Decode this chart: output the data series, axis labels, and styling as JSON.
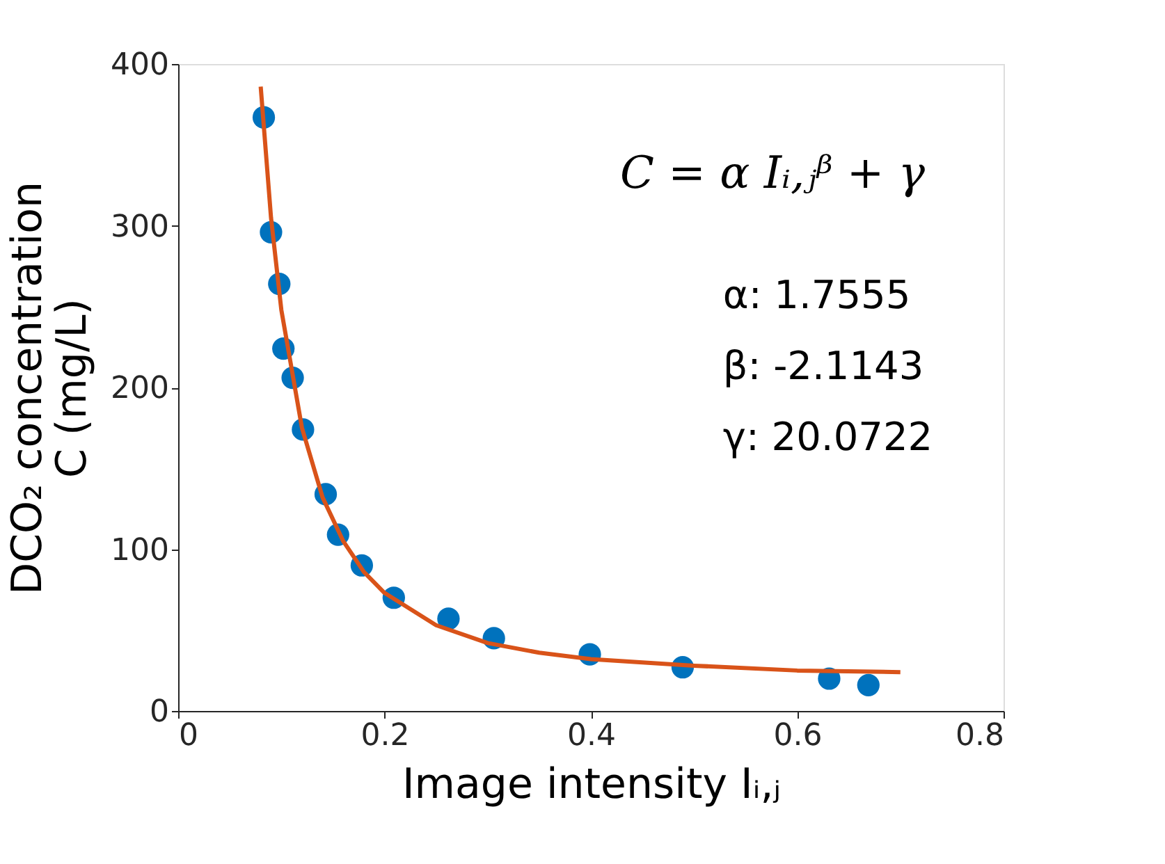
{
  "chart_data": {
    "type": "scatter",
    "xlabel": "Image intensity Iᵢ,ⱼ",
    "ylabel": "DCO₂ concentration\nC (mg/L)",
    "xlim": [
      0,
      0.8
    ],
    "xticks": [
      0,
      0.2,
      0.4,
      0.6,
      0.8
    ],
    "ylim": [
      0,
      400
    ],
    "yticks": [
      0,
      100,
      200,
      300,
      400
    ],
    "grid": false,
    "annotations": [
      "C = α Iᵢ,ⱼᵝ + γ",
      "α: 1.7555",
      "β: -2.1143",
      "γ: 20.0722"
    ],
    "series": [
      {
        "marker": "circle",
        "color": "#0072bd",
        "x": [
          0.083,
          0.09,
          0.098,
          0.102,
          0.111,
          0.121,
          0.143,
          0.155,
          0.178,
          0.209,
          0.262,
          0.306,
          0.399,
          0.489,
          0.631,
          0.669
        ],
        "values": [
          367,
          296,
          264,
          224,
          206,
          174,
          134,
          109,
          90,
          70,
          57,
          45,
          35,
          27,
          20,
          16
        ]
      },
      {
        "type": "line",
        "marker": "none",
        "color": "#d95319",
        "line_style": "solid",
        "x": [
          0.08,
          0.09,
          0.1,
          0.12,
          0.14,
          0.16,
          0.18,
          0.2,
          0.25,
          0.3,
          0.35,
          0.4,
          0.5,
          0.6,
          0.7
        ],
        "values": [
          386,
          305,
          248,
          175,
          132,
          105,
          86,
          73,
          53,
          42,
          36,
          32,
          28,
          25,
          24
        ]
      }
    ]
  }
}
